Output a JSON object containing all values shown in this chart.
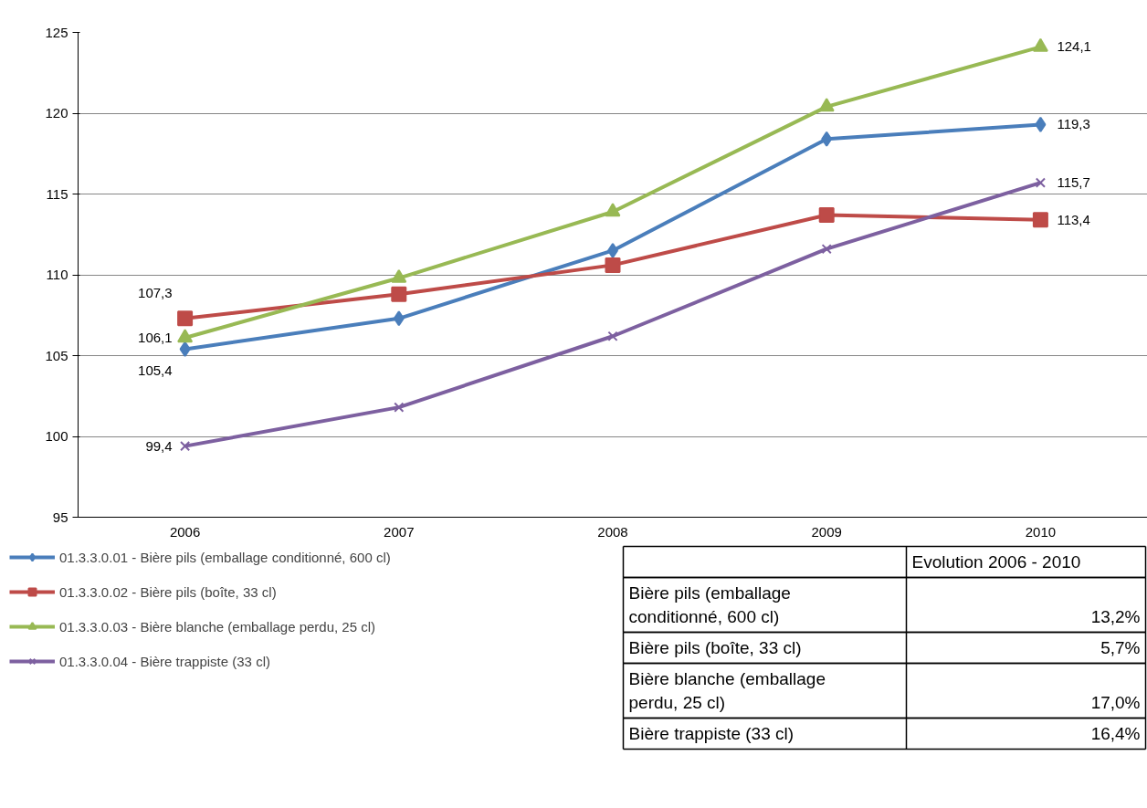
{
  "chart_data": {
    "type": "line",
    "categories": [
      "2006",
      "2007",
      "2008",
      "2009",
      "2010"
    ],
    "series": [
      {
        "name": "01.3.3.0.01 - Bière pils (emballage conditionné, 600 cl)",
        "color": "#4a7ebb",
        "marker": "diamond",
        "values": [
          105.4,
          107.3,
          111.5,
          118.4,
          119.3
        ],
        "value_labels": [
          "105,4",
          null,
          null,
          null,
          "119,3"
        ]
      },
      {
        "name": "01.3.3.0.02 - Bière pils (boîte, 33 cl)",
        "color": "#be4b48",
        "marker": "square",
        "values": [
          107.3,
          108.8,
          110.6,
          113.7,
          113.4
        ],
        "value_labels": [
          "107,3",
          null,
          null,
          null,
          "113,4"
        ]
      },
      {
        "name": "01.3.3.0.03 - Bière blanche (emballage perdu, 25 cl)",
        "color": "#98b954",
        "marker": "triangle",
        "values": [
          106.1,
          109.8,
          113.9,
          120.4,
          124.1
        ],
        "value_labels": [
          "106,1",
          null,
          null,
          null,
          "124,1"
        ]
      },
      {
        "name": "01.3.3.0.04 - Bière trappiste (33 cl)",
        "color": "#7d60a0",
        "marker": "cross",
        "values": [
          99.4,
          101.8,
          106.2,
          111.6,
          115.7
        ],
        "value_labels": [
          "99,4",
          null,
          null,
          null,
          "115,7"
        ]
      }
    ],
    "ylim": [
      95,
      125
    ],
    "yticks": [
      95,
      100,
      105,
      110,
      115,
      120,
      125
    ],
    "grid": "y",
    "legend": "bottom",
    "line_style": "solid",
    "annotations": [
      "Evolution 2006 - 2010",
      "Bière pils (emballage conditionné, 600 cl)",
      "13,2%",
      "Bière pils (boîte, 33 cl)",
      "5,7%",
      "Bière blanche (emballage perdu, 25 cl)",
      "17,0%",
      "Bière trappiste (33 cl)",
      "16,4%"
    ]
  }
}
